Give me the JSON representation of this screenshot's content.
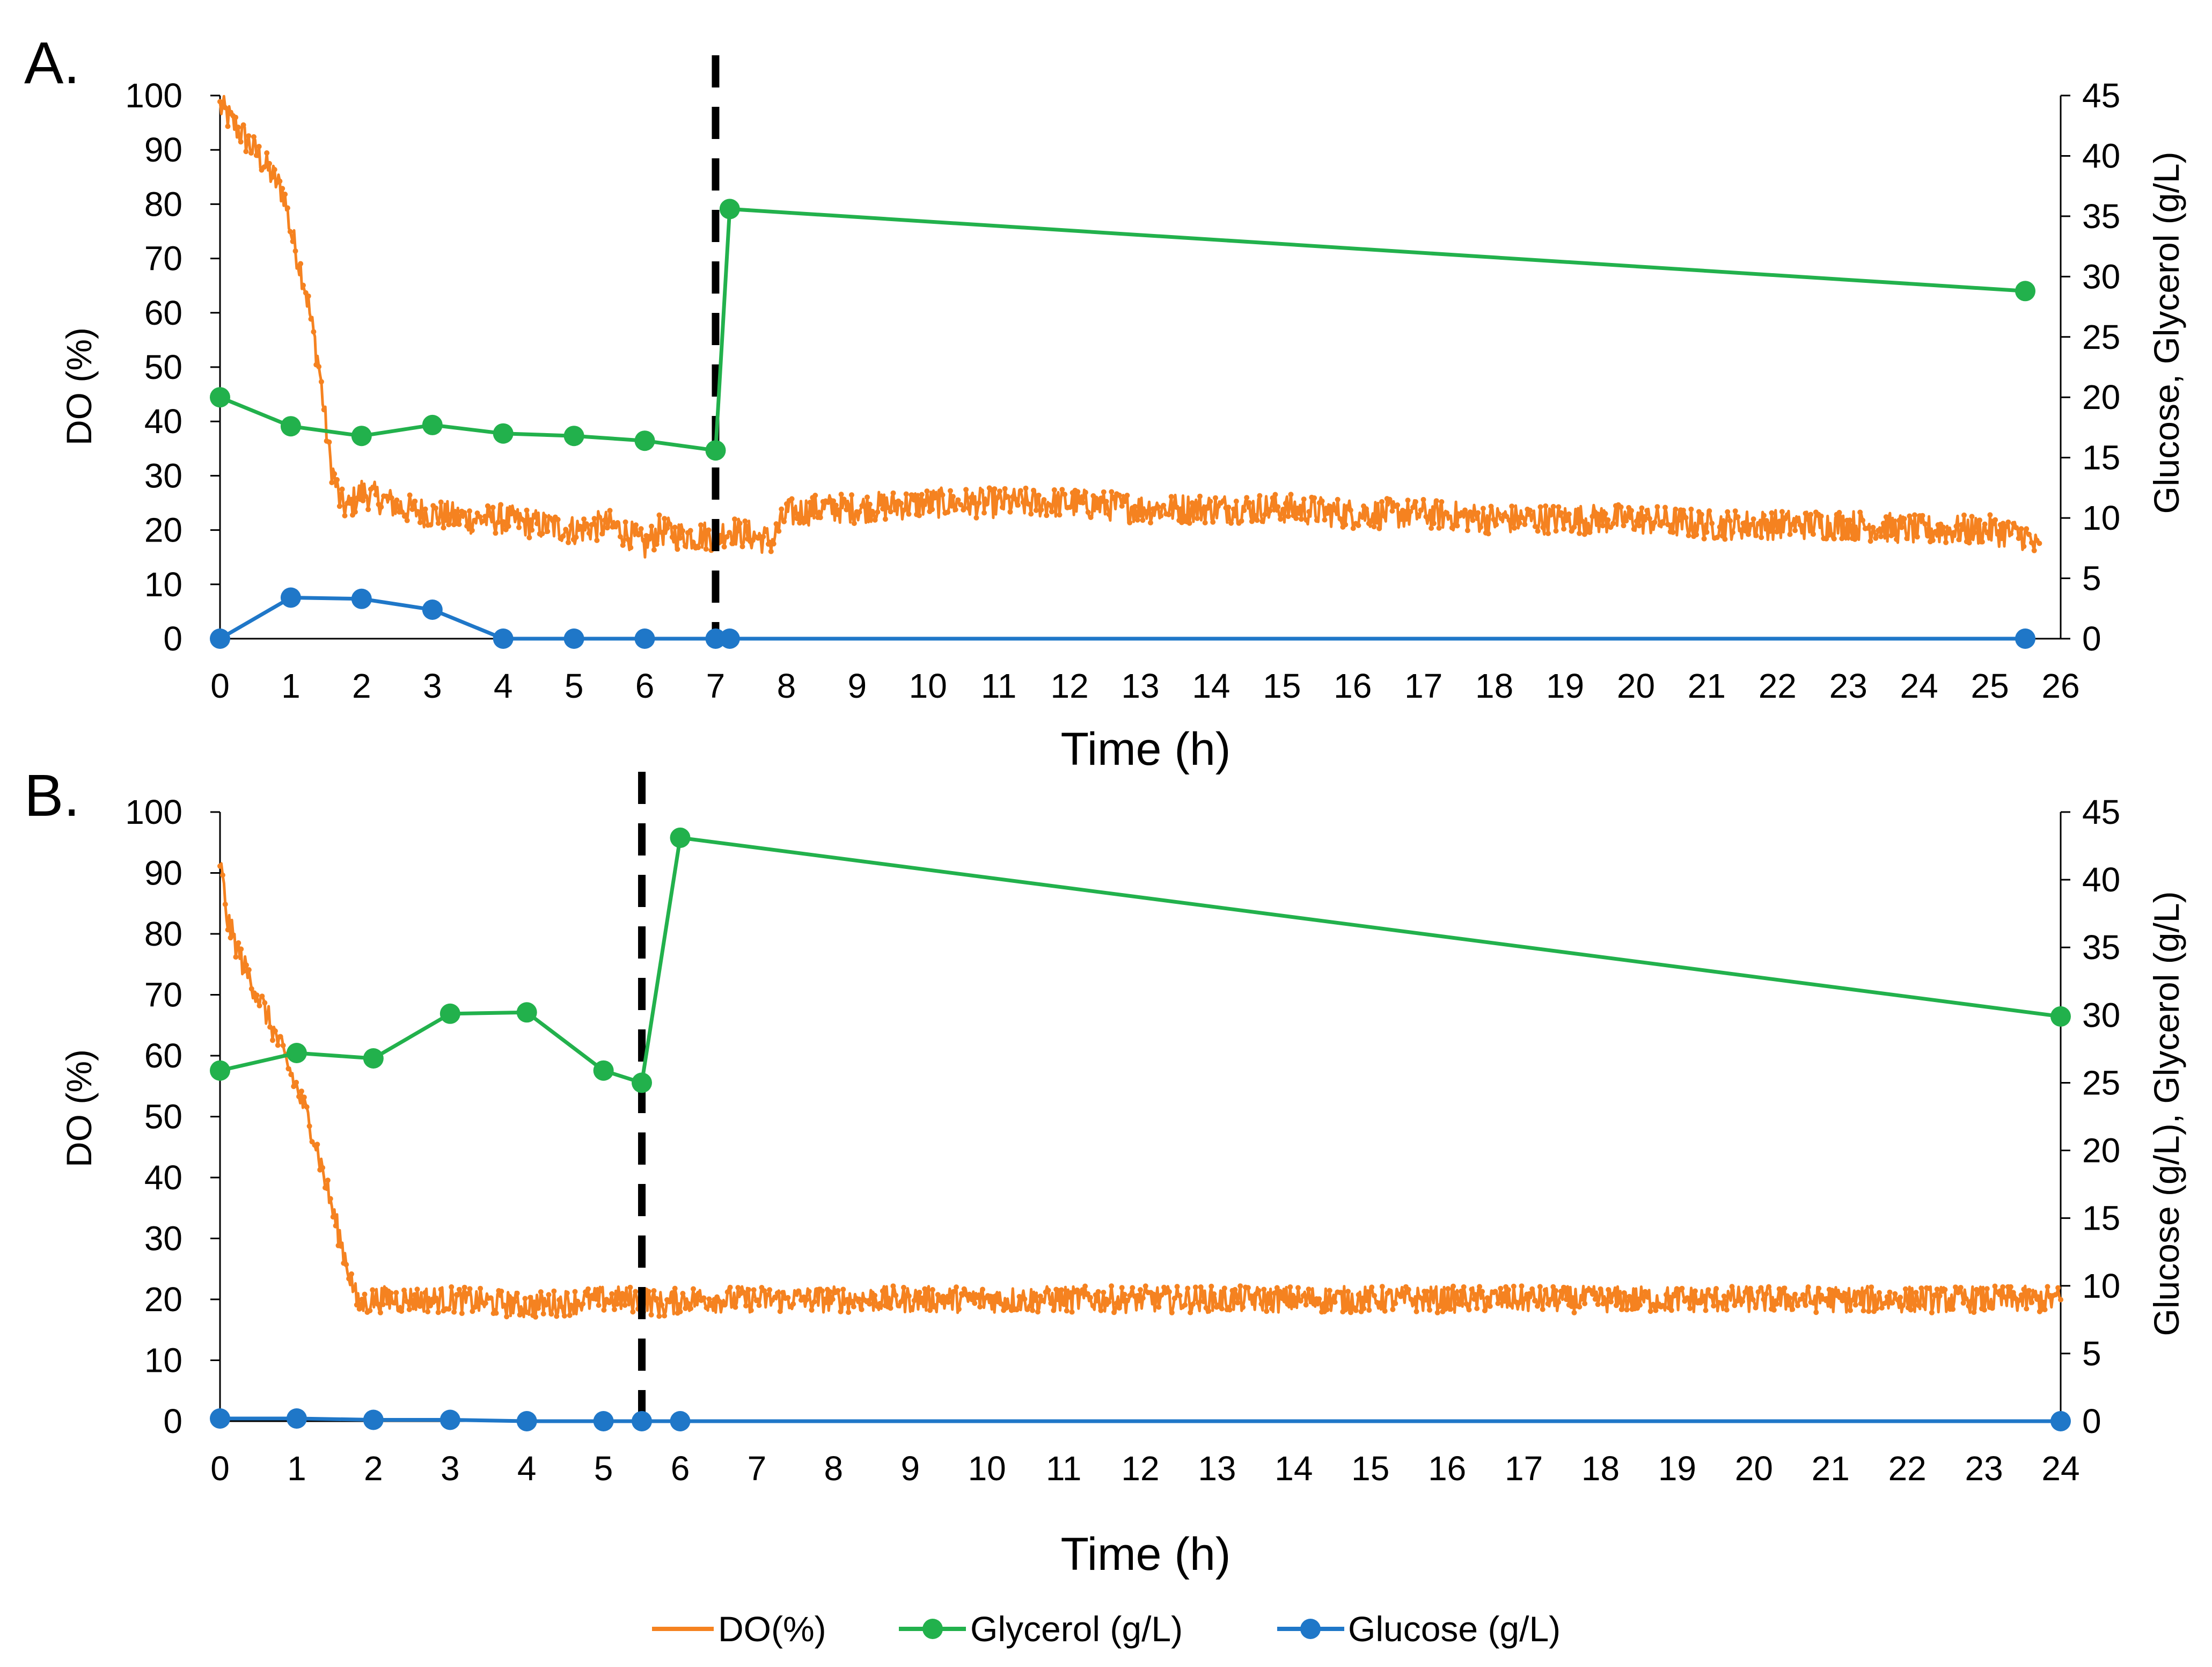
{
  "colors": {
    "do": "#F58220",
    "glycerol": "#22B14C",
    "glucose": "#1F77C8",
    "axis": "#000000",
    "dash": "#000000"
  },
  "legend": [
    {
      "label": "DO(%)",
      "key": "do",
      "marker": "line"
    },
    {
      "label": "Glycerol (g/L)",
      "key": "glycerol",
      "marker": "dot"
    },
    {
      "label": "Glucose (g/L)",
      "key": "glucose",
      "marker": "dot"
    }
  ],
  "chart_data": [
    {
      "panel_label": "A.",
      "type": "line",
      "xlabel": "Time (h)",
      "ylabel": "DO (%)",
      "y2label": "Glucose, Glycerol (g/L)",
      "xlim": [
        0,
        26
      ],
      "xticks": [
        "0",
        "1",
        "2",
        "3",
        "4",
        "5",
        "6",
        "7",
        "8",
        "9",
        "10",
        "11",
        "12",
        "13",
        "14",
        "15",
        "16",
        "17",
        "18",
        "19",
        "20",
        "21",
        "22",
        "23",
        "24",
        "25",
        "26"
      ],
      "ylim": [
        0,
        100
      ],
      "yticks": [
        "0",
        "10",
        "20",
        "30",
        "40",
        "50",
        "60",
        "70",
        "80",
        "90",
        "100"
      ],
      "y2lim": [
        0,
        45
      ],
      "y2ticks": [
        "0",
        "5",
        "10",
        "15",
        "20",
        "25",
        "30",
        "35",
        "40",
        "45"
      ],
      "feed_line_x": 7,
      "series": [
        {
          "name": "Glycerol (g/L)",
          "key": "glycerol",
          "axis": "right",
          "x": [
            0,
            1,
            2,
            3,
            4,
            5,
            6,
            7,
            7.2,
            25.5
          ],
          "y": [
            20.0,
            17.6,
            16.8,
            17.7,
            17.0,
            16.8,
            16.4,
            15.6,
            35.6,
            28.8
          ]
        },
        {
          "name": "Glucose (g/L)",
          "key": "glucose",
          "axis": "right",
          "x": [
            0,
            1,
            2,
            3,
            4,
            5,
            6,
            7,
            7.2,
            25.5
          ],
          "y": [
            0.0,
            3.4,
            3.3,
            2.4,
            0.0,
            0.0,
            0.0,
            0.0,
            0.0,
            0.0
          ]
        },
        {
          "name": "DO(%)",
          "key": "do",
          "axis": "left",
          "x": [
            0,
            0.3,
            0.6,
            0.9,
            1.0,
            1.2,
            1.4,
            1.55,
            1.7,
            1.8,
            2.0,
            2.2,
            2.6,
            3.0,
            3.5,
            4.0,
            4.5,
            5.0,
            5.5,
            5.8,
            6.0,
            6.2,
            6.5,
            6.8,
            7.0,
            7.2,
            7.5,
            7.8,
            8.0,
            8.5,
            9.0,
            10.0,
            11.0,
            12.0,
            13.0,
            14.0,
            15.0,
            16.0,
            17.0,
            18.0,
            19.0,
            20.0,
            21.0,
            22.0,
            23.0,
            24.0,
            25.0,
            25.5,
            25.7
          ],
          "y": [
            98,
            93,
            88,
            82,
            75,
            65,
            50,
            33,
            25,
            24,
            27,
            26,
            24,
            23,
            22,
            22,
            21,
            20,
            21,
            19,
            17,
            20,
            19,
            19,
            19,
            20,
            19,
            18,
            23,
            24,
            24,
            25,
            25,
            25,
            24,
            24,
            24,
            23,
            23,
            22,
            22,
            22,
            21,
            21,
            21,
            20,
            20,
            19,
            16
          ],
          "noise": 2.8
        }
      ]
    },
    {
      "panel_label": "B.",
      "type": "line",
      "xlabel": "Time (h)",
      "ylabel": "DO (%)",
      "y2label": "Glucose (g/L), Glycerol (g/L)",
      "xlim": [
        0,
        24
      ],
      "xticks": [
        "0",
        "1",
        "2",
        "3",
        "4",
        "5",
        "6",
        "7",
        "8",
        "9",
        "10",
        "11",
        "12",
        "13",
        "14",
        "15",
        "16",
        "17",
        "18",
        "19",
        "20",
        "21",
        "22",
        "23",
        "24"
      ],
      "ylim": [
        0,
        100
      ],
      "yticks": [
        "0",
        "10",
        "20",
        "30",
        "40",
        "50",
        "60",
        "70",
        "80",
        "90",
        "100"
      ],
      "y2lim": [
        0,
        45
      ],
      "y2ticks": [
        "0",
        "5",
        "10",
        "15",
        "20",
        "25",
        "30",
        "35",
        "40",
        "45"
      ],
      "feed_line_x": 5.5,
      "series": [
        {
          "name": "Glycerol (g/L)",
          "key": "glycerol",
          "axis": "right",
          "x": [
            0,
            1,
            2,
            3,
            4,
            5,
            5.5,
            6,
            24
          ],
          "y": [
            25.9,
            27.2,
            26.8,
            30.1,
            30.2,
            25.9,
            25.0,
            43.1,
            29.9
          ]
        },
        {
          "name": "Glucose (g/L)",
          "key": "glucose",
          "axis": "right",
          "x": [
            0,
            1,
            2,
            3,
            4,
            5,
            5.5,
            6,
            24
          ],
          "y": [
            0.2,
            0.2,
            0.1,
            0.1,
            0.0,
            0.0,
            0.0,
            0.0,
            0.0
          ]
        },
        {
          "name": "DO(%)",
          "key": "do",
          "axis": "left",
          "x": [
            0,
            0.1,
            0.3,
            0.6,
            0.9,
            1.2,
            1.5,
            1.8,
            2.0,
            3.0,
            4.0,
            5.0,
            5.5,
            5.8,
            6.0,
            7.0,
            8.0,
            9.0,
            10.0,
            11.0,
            12.0,
            13.0,
            14.0,
            15.0,
            16.0,
            17.0,
            18.0,
            19.0,
            20.0,
            21.0,
            22.0,
            23.0,
            24.0
          ],
          "y": [
            92,
            82,
            75,
            67,
            58,
            48,
            33,
            19,
            20,
            20,
            19,
            20,
            20,
            19,
            20,
            20,
            20,
            20,
            20,
            20,
            20,
            20,
            20,
            20,
            20,
            20,
            20,
            20,
            20,
            20,
            20,
            20,
            20
          ],
          "noise": 2.2
        }
      ]
    }
  ]
}
